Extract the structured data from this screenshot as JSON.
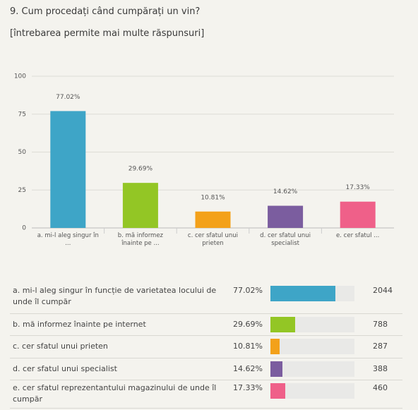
{
  "chart_data": {
    "type": "bar",
    "title": "9. Cum procedați când cumpărați un vin?",
    "subtitle": "[întrebarea permite mai multe răspunsuri]",
    "categories": [
      "a. mi-l aleg singur în ...",
      "b. mă informez înainte pe ...",
      "c. cer sfatul unui prieten",
      "d. cer sfatul unui specialist",
      "e. cer sfatul ..."
    ],
    "series": [
      {
        "name": "Procent",
        "colors": [
          "#3ea5c7",
          "#93c625",
          "#f3a11a",
          "#7b5d9f",
          "#ef6089"
        ],
        "values": [
          77.02,
          29.69,
          10.81,
          14.62,
          17.33
        ],
        "value_labels": [
          "77.02%",
          "29.69%",
          "10.81%",
          "14.62%",
          "17.33%"
        ]
      }
    ],
    "ylim": [
      0,
      100
    ],
    "yticks": [
      0,
      25,
      50,
      75,
      100
    ],
    "grid": true
  },
  "table": {
    "rows": [
      [
        "a. mi-l aleg singur în funcție de varietatea locului de unde îl cumpăr",
        "77.02%",
        "2044"
      ],
      [
        "b. mă informez înainte pe internet",
        "29.69%",
        "788"
      ],
      [
        "c. cer sfatul unui prieten",
        "10.81%",
        "287"
      ],
      [
        "d. cer sfatul unui specialist",
        "14.62%",
        "388"
      ],
      [
        "e. cer sfatul reprezentantului magazinului de unde îl cumpăr",
        "17.33%",
        "460"
      ]
    ]
  }
}
